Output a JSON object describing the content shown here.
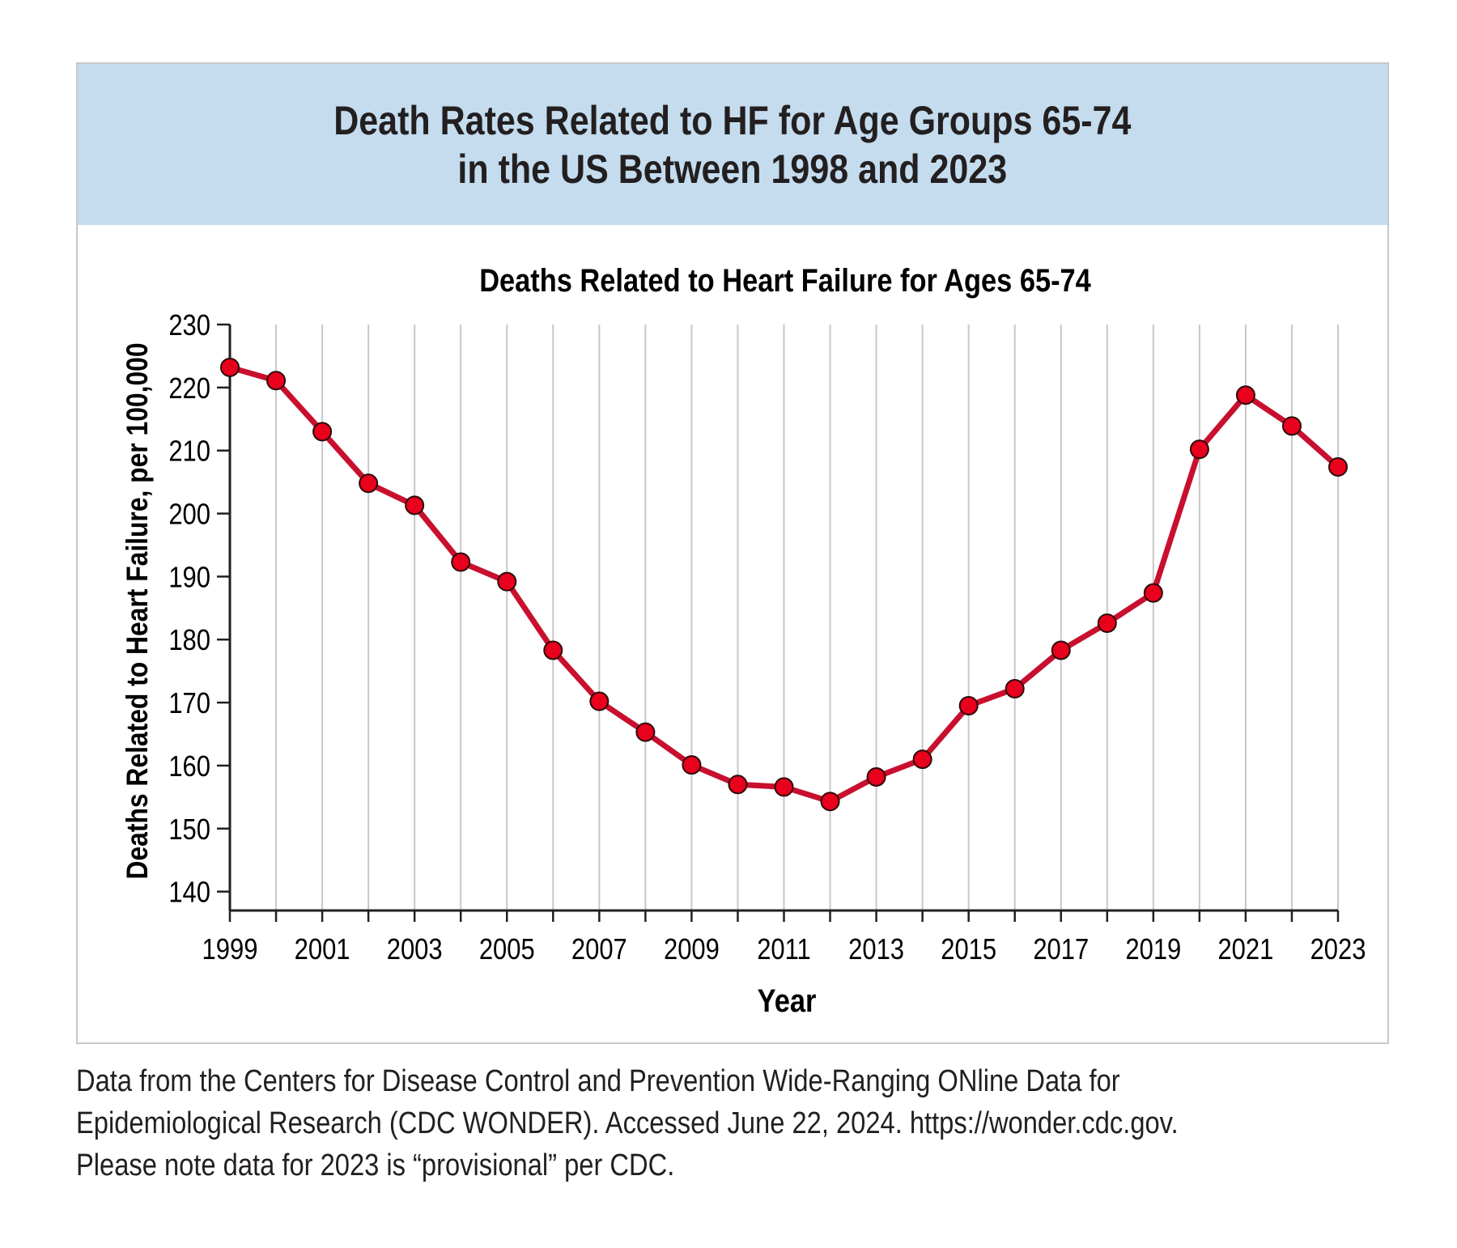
{
  "header": {
    "title_line1": "Death Rates Related to HF for Age Groups 65-74",
    "title_line2": "in the US Between 1998 and 2023"
  },
  "note": {
    "line1": "Data from the Centers for Disease Control and Prevention Wide-Ranging ONline Data for",
    "line2": "Epidemiological Research (CDC WONDER). Accessed June 22, 2024. https://wonder.cdc.gov.",
    "line3": "Please note data for 2023 is “provisional” per CDC."
  },
  "colors": {
    "header_bg": "#c4dcee",
    "line": "#c8102e",
    "marker_fill": "#e8001c",
    "grid": "#c8c8c8",
    "axis": "#231f20"
  },
  "chart_data": {
    "type": "line",
    "title": "Deaths Related to Heart Failure for Ages 65-74",
    "xlabel": "Year",
    "ylabel": "Deaths Related to Heart Failure, per 100,000",
    "xlim": [
      1999,
      2023
    ],
    "ylim": [
      137,
      230
    ],
    "yticks": [
      140,
      150,
      160,
      170,
      180,
      190,
      200,
      210,
      220,
      230
    ],
    "xticks": [
      1999,
      2001,
      2003,
      2005,
      2007,
      2009,
      2011,
      2013,
      2015,
      2017,
      2019,
      2021,
      2023
    ],
    "grid": "vertical",
    "x": [
      1999,
      2000,
      2001,
      2002,
      2003,
      2004,
      2005,
      2006,
      2007,
      2008,
      2009,
      2010,
      2011,
      2012,
      2013,
      2014,
      2015,
      2016,
      2017,
      2018,
      2019,
      2020,
      2021,
      2022,
      2023
    ],
    "series": [
      {
        "values": [
          223.2,
          221.1,
          213.0,
          204.8,
          201.3,
          192.3,
          189.2,
          178.3,
          170.2,
          165.3,
          160.1,
          157.0,
          156.6,
          154.3,
          158.2,
          161.0,
          169.5,
          172.2,
          178.3,
          182.6,
          187.4,
          210.2,
          218.8,
          213.9,
          207.4
        ]
      }
    ]
  }
}
